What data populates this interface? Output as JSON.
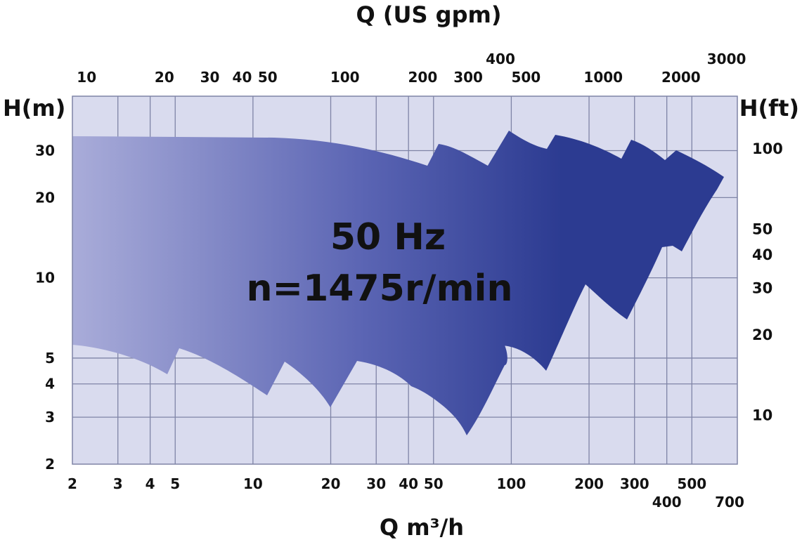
{
  "chart_data": {
    "type": "area",
    "title_top": "Q (US gpm)",
    "xlabel": "Q m³/h",
    "ylabel_left": "H(m)",
    "ylabel_right": "H(ft)",
    "annotation": {
      "line1": "50 Hz",
      "line2": "n=1475r/min"
    },
    "x_scale": "log",
    "y_scale": "log",
    "xlim": [
      2,
      750
    ],
    "ylim": [
      2,
      48
    ],
    "grid": true,
    "colors": {
      "plot_bg": "#d9dbee",
      "grid": "#7f84a6",
      "area_light": "#a9acd9",
      "area_dark": "#2c3b91"
    },
    "x_ticks_bottom": [
      {
        "label": "2",
        "v": 2
      },
      {
        "label": "3",
        "v": 3
      },
      {
        "label": "4",
        "v": 4
      },
      {
        "label": "5",
        "v": 5
      },
      {
        "label": "10",
        "v": 10
      },
      {
        "label": "20",
        "v": 20
      },
      {
        "label": "30",
        "v": 30
      },
      {
        "label": "40",
        "v": 40
      },
      {
        "label": "50",
        "v": 50
      },
      {
        "label": "100",
        "v": 100
      },
      {
        "label": "200",
        "v": 200
      },
      {
        "label": "300",
        "v": 300
      },
      {
        "label": "400",
        "v": 400,
        "row": 2
      },
      {
        "label": "500",
        "v": 500
      },
      {
        "label": "700",
        "v": 700,
        "row": 2
      }
    ],
    "x_ticks_top": [
      {
        "label": "10",
        "v": 2.27
      },
      {
        "label": "20",
        "v": 4.54
      },
      {
        "label": "30",
        "v": 6.81
      },
      {
        "label": "40",
        "v": 9.08
      },
      {
        "label": "50",
        "v": 11.4
      },
      {
        "label": "100",
        "v": 22.7
      },
      {
        "label": "200",
        "v": 45.4
      },
      {
        "label": "300",
        "v": 68.1
      },
      {
        "label": "400",
        "v": 90.8,
        "row": 2
      },
      {
        "label": "500",
        "v": 114
      },
      {
        "label": "1000",
        "v": 227
      },
      {
        "label": "2000",
        "v": 454
      },
      {
        "label": "3000",
        "v": 681,
        "row": 2
      }
    ],
    "y_ticks_left": [
      {
        "label": "2",
        "v": 2
      },
      {
        "label": "3",
        "v": 3
      },
      {
        "label": "4",
        "v": 4
      },
      {
        "label": "5",
        "v": 5
      },
      {
        "label": "10",
        "v": 10
      },
      {
        "label": "20",
        "v": 20
      },
      {
        "label": "30",
        "v": 30
      }
    ],
    "y_ticks_right": [
      {
        "label": "10",
        "v": 3.05
      },
      {
        "label": "20",
        "v": 6.1
      },
      {
        "label": "30",
        "v": 9.14
      },
      {
        "label": "40",
        "v": 12.2
      },
      {
        "label": "50",
        "v": 15.2
      },
      {
        "label": "100",
        "v": 30.5
      }
    ],
    "x_grid": [
      3,
      4,
      5,
      10,
      20,
      30,
      40,
      50,
      100,
      200,
      300,
      400,
      500
    ],
    "y_grid": [
      3,
      4,
      5,
      10,
      20,
      30
    ],
    "coverage": {
      "upper_envelope": [
        [
          2,
          36
        ],
        [
          10,
          35.7
        ],
        [
          20,
          34
        ],
        [
          30,
          30
        ],
        [
          40,
          25.5
        ],
        [
          50,
          34.5
        ],
        [
          70,
          26.2
        ],
        [
          90,
          43
        ],
        [
          130,
          33.5
        ],
        [
          145,
          41
        ],
        [
          230,
          29.5
        ],
        [
          270,
          39
        ],
        [
          400,
          28.5
        ],
        [
          420,
          33
        ],
        [
          650,
          25.5
        ]
      ],
      "lower_envelope": [
        [
          2,
          6.2
        ],
        [
          3,
          5.7
        ],
        [
          4.5,
          4.6
        ],
        [
          5,
          6
        ],
        [
          10.5,
          3.8
        ],
        [
          13,
          5
        ],
        [
          19,
          3.5
        ],
        [
          25,
          5.3
        ],
        [
          40,
          4.2
        ],
        [
          65,
          2.55
        ],
        [
          95,
          5.8
        ],
        [
          85,
          7
        ],
        [
          120,
          4.6
        ],
        [
          200,
          12.3
        ],
        [
          250,
          7.2
        ],
        [
          330,
          15.3
        ],
        [
          300,
          16.2
        ],
        [
          430,
          12.7
        ],
        [
          650,
          25.5
        ]
      ]
    }
  }
}
